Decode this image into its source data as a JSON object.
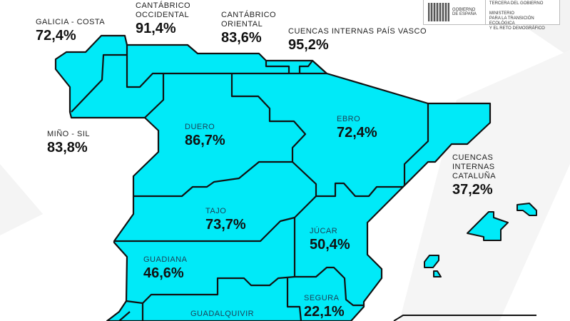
{
  "colors": {
    "basin_fill": "#00eaf8",
    "border": "#111111",
    "background": "#ffffff"
  },
  "logo": {
    "emblem": "coat-of-arms-of-spain",
    "gov": [
      "GOBIERNO",
      "DE ESPAÑA"
    ],
    "ministry": [
      "TERCERA DEL GOBIERNO",
      "MINISTERIO",
      "PARA LA TRANSICIÓN ECOLÓGICA",
      "Y EL RETO DEMOGRÁFICO"
    ]
  },
  "basins": [
    {
      "name": "GALICIA - COSTA",
      "value": "72,4%"
    },
    {
      "name": "CANTÁBRICO OCCIDENTAL",
      "value": "91,4%"
    },
    {
      "name": "CANTÁBRICO ORIENTAL",
      "value": "83,6%"
    },
    {
      "name": "CUENCAS INTERNAS PAÍS VASCO",
      "value": "95,2%"
    },
    {
      "name": "MIÑO - SIL",
      "value": "83,8%"
    },
    {
      "name": "DUERO",
      "value": "86,7%"
    },
    {
      "name": "EBRO",
      "value": "72,4%"
    },
    {
      "name": "CUENCAS INTERNAS CATALUÑA",
      "value": "37,2%"
    },
    {
      "name": "TAJO",
      "value": "73,7%"
    },
    {
      "name": "JÚCAR",
      "value": "50,4%"
    },
    {
      "name": "GUADIANA",
      "value": "46,6%"
    },
    {
      "name": "SEGURA",
      "value": "22,1%"
    },
    {
      "name": "GUADALQUIVIR",
      "value": ""
    }
  ]
}
